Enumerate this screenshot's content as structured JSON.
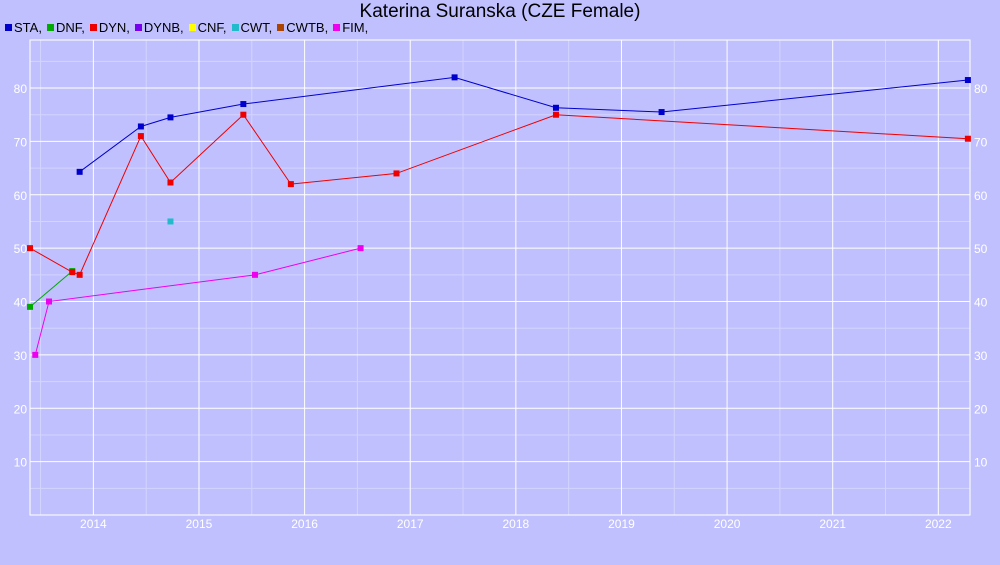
{
  "chart_data": {
    "type": "line",
    "title": "Katerina Suranska (CZE Female)",
    "xlabel": "",
    "ylabel": "",
    "x_ticks": [
      "2014",
      "2015",
      "2016",
      "2017",
      "2018",
      "2019",
      "2020",
      "2021",
      "2022"
    ],
    "y_ticks": [
      "10",
      "20",
      "30",
      "40",
      "50",
      "60",
      "70",
      "80"
    ],
    "xlim": [
      2013.4,
      2022.3
    ],
    "ylim": [
      0,
      89
    ],
    "grid": true,
    "legend_position": "top-left",
    "series": [
      {
        "name": "STA",
        "color": "#0000cc",
        "points": [
          [
            2013.87,
            64.3
          ],
          [
            2014.45,
            72.8
          ],
          [
            2014.73,
            74.5
          ],
          [
            2015.42,
            77
          ],
          [
            2017.42,
            82
          ],
          [
            2018.38,
            76.3
          ],
          [
            2019.38,
            75.5
          ],
          [
            2022.28,
            81.5
          ]
        ]
      },
      {
        "name": "DNF",
        "color": "#00aa00",
        "points": [
          [
            2013.4,
            39
          ],
          [
            2013.8,
            45.7
          ]
        ]
      },
      {
        "name": "DYN",
        "color": "#ee0000",
        "points": [
          [
            2013.4,
            50
          ],
          [
            2013.8,
            45.5
          ],
          [
            2013.87,
            45
          ],
          [
            2014.45,
            71
          ],
          [
            2014.73,
            62.3
          ],
          [
            2015.42,
            75
          ],
          [
            2015.87,
            62
          ],
          [
            2016.87,
            64
          ],
          [
            2018.38,
            75
          ],
          [
            2022.28,
            70.5
          ]
        ]
      },
      {
        "name": "DYNB",
        "color": "#7700ee",
        "points": []
      },
      {
        "name": "CNF",
        "color": "#ffff00",
        "points": []
      },
      {
        "name": "CWT",
        "color": "#22bbcc",
        "points": [
          [
            2014.73,
            55
          ]
        ]
      },
      {
        "name": "CWTB",
        "color": "#aa4400",
        "points": []
      },
      {
        "name": "FIM",
        "color": "#ee00ee",
        "points": [
          [
            2013.45,
            30
          ],
          [
            2013.58,
            40
          ],
          [
            2015.53,
            45
          ],
          [
            2016.53,
            50
          ]
        ]
      }
    ]
  }
}
